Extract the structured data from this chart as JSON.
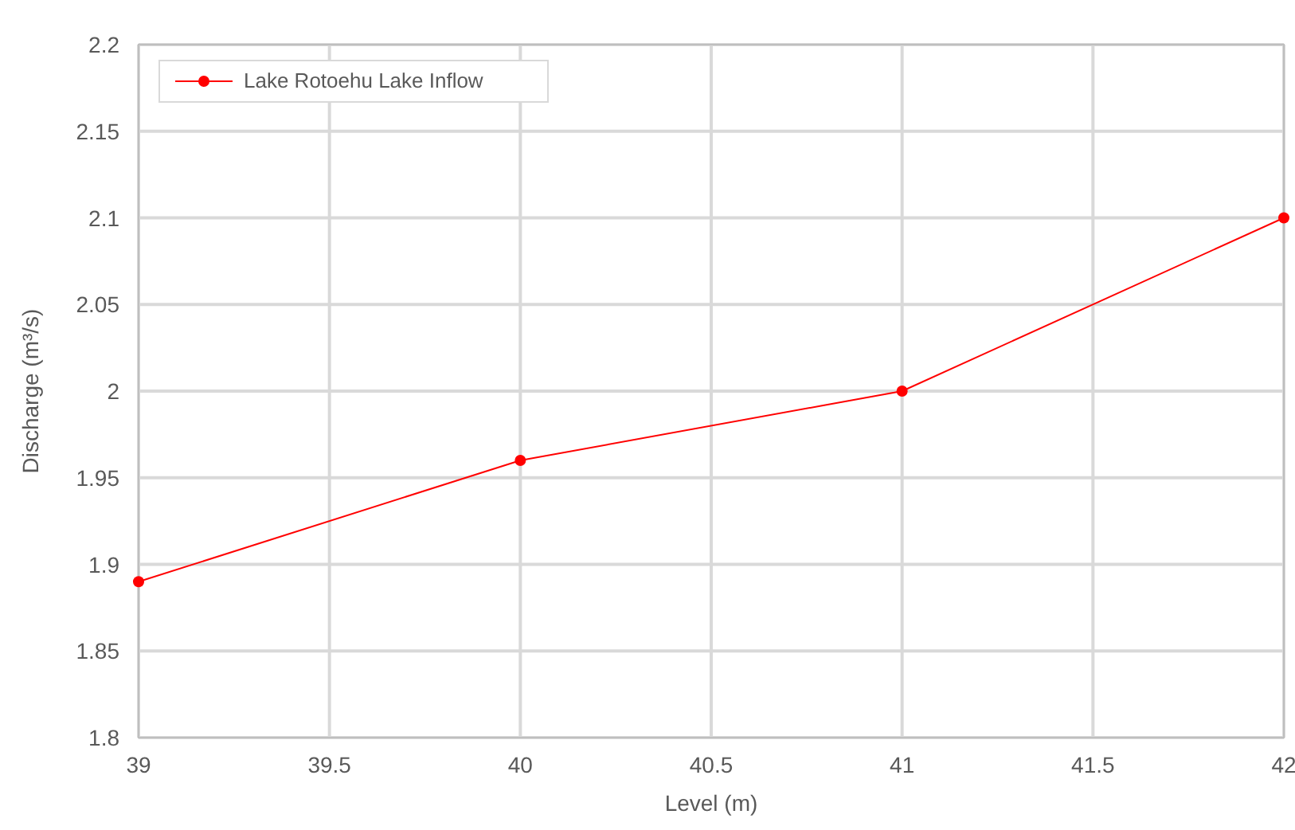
{
  "chart_data": {
    "type": "line",
    "xlabel": "Level (m)",
    "ylabel": "Discharge (m³/s)",
    "x": [
      39,
      40,
      41,
      42
    ],
    "series": [
      {
        "name": "Lake Rotoehu Lake Inflow",
        "color": "#ff0000",
        "values": [
          1.89,
          1.96,
          2.0,
          2.1
        ]
      }
    ],
    "xlim": [
      39,
      42
    ],
    "xticks": [
      39,
      39.5,
      40,
      40.5,
      41,
      41.5,
      42
    ],
    "ylim": [
      1.8,
      2.2
    ],
    "yticks": [
      1.8,
      1.85,
      1.9,
      1.95,
      2,
      2.05,
      2.1,
      2.15,
      2.2
    ],
    "grid": true,
    "legend": "top left",
    "marker": "circle",
    "line_style": "solid"
  }
}
